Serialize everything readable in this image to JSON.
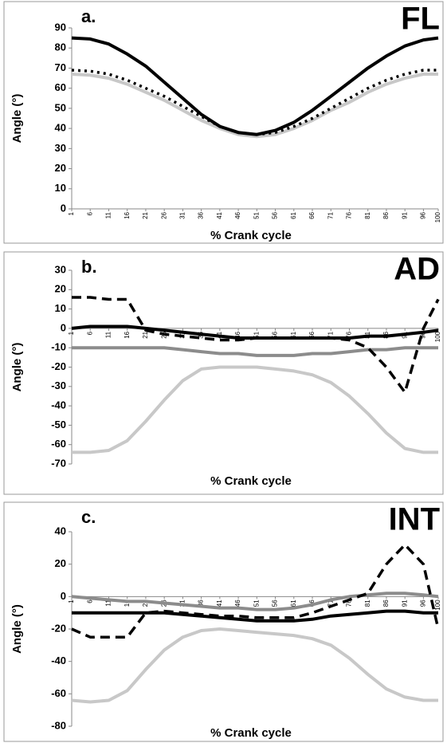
{
  "chart_data": [
    {
      "type": "line",
      "title": "FL",
      "annotation": "a.",
      "y_label": "Angle (°)",
      "x_label": "% Crank cycle",
      "x": [
        1,
        6,
        11,
        16,
        21,
        26,
        31,
        36,
        41,
        46,
        51,
        56,
        61,
        66,
        71,
        76,
        81,
        86,
        91,
        96,
        100
      ],
      "xticks": [
        1,
        6,
        11,
        16,
        21,
        26,
        31,
        36,
        41,
        46,
        51,
        56,
        61,
        66,
        71,
        76,
        81,
        86,
        91,
        96,
        100
      ],
      "xlim": [
        1,
        100
      ],
      "ylim": [
        0,
        90
      ],
      "yticks": [
        0,
        10,
        20,
        30,
        40,
        50,
        60,
        70,
        80,
        90
      ],
      "series": [
        {
          "color": "#c8c8c8",
          "dash": "solid",
          "values": [
            67,
            66.5,
            65,
            62,
            58,
            54,
            49,
            44,
            40,
            37,
            36,
            37,
            40,
            44,
            49,
            53,
            58,
            62,
            65,
            67,
            67
          ]
        },
        {
          "color": "#000000",
          "dash": "dotted",
          "values": [
            69,
            68.5,
            67,
            64,
            60,
            56,
            51,
            46,
            41,
            38,
            37,
            38,
            41,
            45,
            50,
            55,
            60,
            64,
            67,
            69,
            69
          ]
        },
        {
          "color": "#000000",
          "dash": "solid",
          "values": [
            85,
            84.5,
            82,
            77,
            71,
            63,
            55,
            47,
            41,
            38,
            37,
            39,
            43,
            49,
            56,
            63,
            70,
            76,
            81,
            84,
            85
          ]
        }
      ]
    },
    {
      "type": "line",
      "title": "AD",
      "annotation": "b.",
      "y_label": "Angle (°)",
      "x_label": "% Crank cycle",
      "x": [
        1,
        6,
        11,
        16,
        21,
        26,
        31,
        36,
        41,
        46,
        51,
        56,
        61,
        66,
        71,
        76,
        81,
        86,
        91,
        96,
        100
      ],
      "xticks": [
        1,
        6,
        11,
        16,
        21,
        26,
        31,
        36,
        41,
        46,
        51,
        56,
        61,
        66,
        71,
        76,
        81,
        86,
        91,
        96,
        100
      ],
      "xlim": [
        1,
        100
      ],
      "ylim": [
        -70,
        30
      ],
      "yticks": [
        -70,
        -60,
        -50,
        -40,
        -30,
        -20,
        -10,
        0,
        10,
        20,
        30
      ],
      "series": [
        {
          "color": "#c8c8c8",
          "dash": "solid",
          "values": [
            -64,
            -64,
            -63,
            -58,
            -48,
            -37,
            -27,
            -21,
            -20,
            -20,
            -20,
            -21,
            -22,
            -24,
            -28,
            -35,
            -44,
            -54,
            -62,
            -64,
            -64
          ]
        },
        {
          "color": "#8c8c8c",
          "dash": "solid",
          "values": [
            -10,
            -10,
            -10,
            -10,
            -10,
            -10,
            -11,
            -12,
            -13,
            -13,
            -14,
            -14,
            -14,
            -13,
            -13,
            -12,
            -11,
            -11,
            -10,
            -10,
            -10
          ]
        },
        {
          "color": "#000000",
          "dash": "solid",
          "values": [
            0,
            1,
            1,
            1,
            0,
            -1,
            -2,
            -3,
            -4,
            -5,
            -5,
            -5,
            -5,
            -5,
            -5,
            -5,
            -4,
            -4,
            -3,
            -2,
            -1
          ]
        },
        {
          "color": "#000000",
          "dash": "dashed",
          "values": [
            16,
            16,
            15,
            15,
            -1,
            -3,
            -4,
            -5,
            -6,
            -6,
            -5,
            -5,
            -5,
            -5,
            -5,
            -6,
            -10,
            -20,
            -33,
            0,
            15
          ]
        }
      ]
    },
    {
      "type": "line",
      "title": "INT",
      "annotation": "c.",
      "y_label": "Angle (°)",
      "x_label": "% Crank cycle",
      "x": [
        1,
        6,
        11,
        16,
        21,
        26,
        31,
        36,
        41,
        46,
        51,
        56,
        61,
        66,
        71,
        76,
        81,
        86,
        91,
        96,
        100
      ],
      "xticks": [
        1,
        6,
        11,
        16,
        21,
        26,
        31,
        36,
        41,
        46,
        51,
        56,
        61,
        66,
        71,
        76,
        81,
        86,
        91,
        96,
        100
      ],
      "xlim": [
        1,
        100
      ],
      "ylim": [
        -80,
        40
      ],
      "yticks": [
        -80,
        -60,
        -40,
        -20,
        0,
        20,
        40
      ],
      "series": [
        {
          "color": "#c8c8c8",
          "dash": "solid",
          "values": [
            -64,
            -65,
            -64,
            -58,
            -45,
            -33,
            -25,
            -21,
            -20,
            -21,
            -22,
            -23,
            -24,
            -26,
            -30,
            -38,
            -48,
            -57,
            -62,
            -64,
            -64
          ]
        },
        {
          "color": "#8c8c8c",
          "dash": "solid",
          "values": [
            0,
            -1,
            -2,
            -3,
            -3,
            -4,
            -5,
            -6,
            -7,
            -7,
            -8,
            -8,
            -7,
            -5,
            -2,
            0,
            1,
            2,
            2,
            1,
            0
          ]
        },
        {
          "color": "#000000",
          "dash": "solid",
          "values": [
            -10,
            -10,
            -10,
            -10,
            -10,
            -10,
            -11,
            -12,
            -13,
            -14,
            -15,
            -15,
            -15,
            -14,
            -12,
            -11,
            -10,
            -9,
            -9,
            -10,
            -10
          ]
        },
        {
          "color": "#000000",
          "dash": "dashed",
          "values": [
            -20,
            -25,
            -25,
            -25,
            -10,
            -9,
            -10,
            -11,
            -12,
            -12,
            -13,
            -13,
            -13,
            -10,
            -6,
            -2,
            2,
            20,
            32,
            20,
            -20
          ]
        }
      ]
    }
  ]
}
